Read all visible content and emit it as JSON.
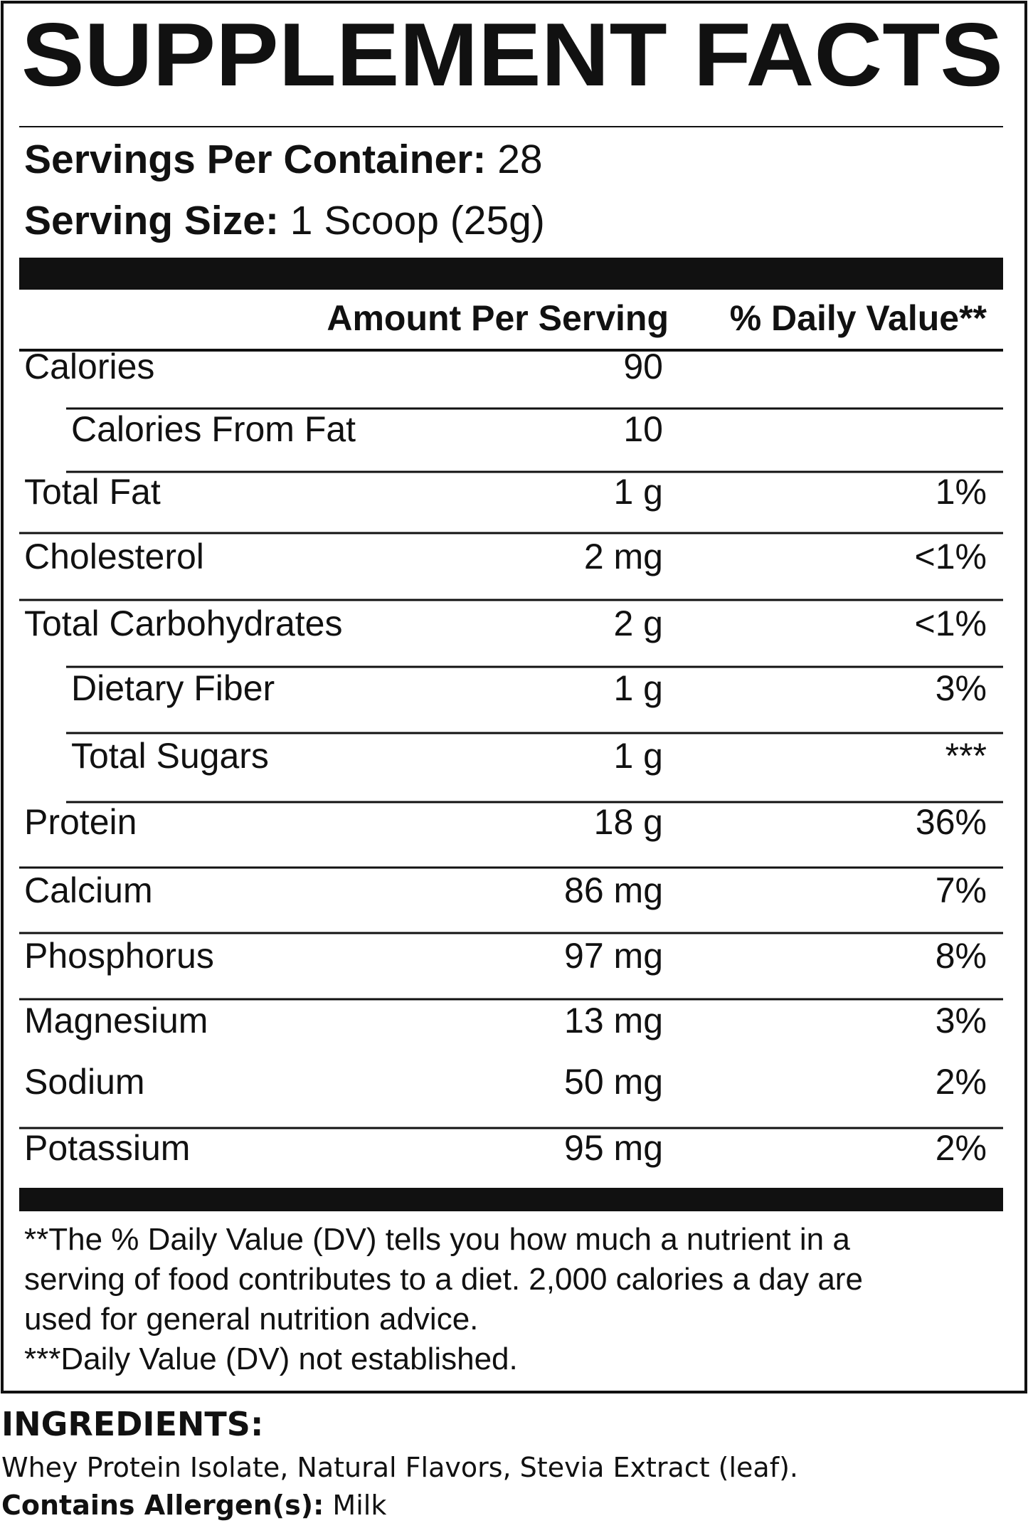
{
  "title": "SUPPLEMENT FACTS",
  "servings_per_container": {
    "label": "Servings Per Container:",
    "value": "28"
  },
  "serving_size": {
    "label": "Serving Size:",
    "value": "1 Scoop (25g)"
  },
  "table": {
    "columns": [
      "Amount Per Serving",
      "% Daily Value**"
    ],
    "rows": [
      {
        "name": "Calories",
        "amount": "90",
        "subrows": [
          {
            "name": "Calories From Fat",
            "amount": "10"
          }
        ]
      },
      {
        "name": "Total Fat",
        "amount": "1 g",
        "dv": "1%"
      },
      {
        "name": "Cholesterol",
        "amount": "2 mg",
        "dv": "<1%"
      },
      {
        "name": "Total Carbohydrates",
        "amount": "2 g",
        "dv": "<1%",
        "subrows": [
          {
            "name": "Dietary Fiber",
            "amount": "1 g",
            "dv": "3%"
          },
          {
            "name": "Total Sugars",
            "amount": "1 g",
            "dv": "***"
          }
        ]
      },
      {
        "name": "Protein",
        "amount": "18 g",
        "dv": "36%"
      },
      {
        "name": "Calcium",
        "amount": "86 mg",
        "dv": "7%"
      },
      {
        "name": "Phosphorus",
        "amount": "97 mg",
        "dv": "8%"
      },
      {
        "name": "Magnesium",
        "amount": "13 mg",
        "dv": "3%"
      },
      {
        "name": "Sodium",
        "amount": "50 mg",
        "dv": "2%"
      },
      {
        "name": "Potassium",
        "amount": "95 mg",
        "dv": "2%"
      }
    ]
  },
  "footnotes": [
    "**The % Daily Value (DV) tells you how much a nutrient in a",
    "serving of food contributes to a diet. 2,000 calories a day are",
    "used for general nutrition advice.",
    "***Daily Value (DV) not established."
  ],
  "ingredients": {
    "heading": "INGREDIENTS:",
    "text": "Whey Protein Isolate, Natural Flavors, Stevia Extract (leaf).",
    "allergen_label": "Contains Allergen(s):",
    "allergen_value": "Milk"
  }
}
